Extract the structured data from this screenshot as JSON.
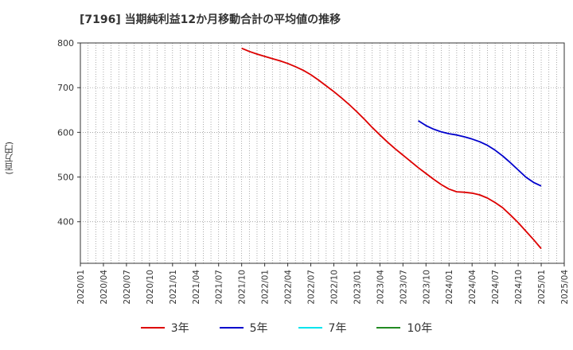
{
  "chart_data": {
    "type": "line",
    "title": "[7196]  当期純利益12か月移動合計の平均値の推移",
    "ylabel": "(百万円)",
    "xlabel": "",
    "ylim": [
      307,
      800
    ],
    "yticks": [
      400,
      500,
      600,
      700,
      800
    ],
    "x_tick_labels": [
      "2020/01",
      "2020/04",
      "2020/07",
      "2020/10",
      "2021/01",
      "2021/04",
      "2021/07",
      "2021/10",
      "2022/01",
      "2022/04",
      "2022/07",
      "2022/10",
      "2023/01",
      "2023/04",
      "2023/07",
      "2023/10",
      "2024/01",
      "2024/04",
      "2024/07",
      "2024/10",
      "2025/01",
      "2025/04"
    ],
    "x_start": "2020/01",
    "x_end": "2025/04",
    "grid": true,
    "legend_position": "bottom",
    "series": [
      {
        "name": "3年",
        "color": "#dd0000",
        "x": [
          "2021/10",
          "2021/11",
          "2021/12",
          "2022/01",
          "2022/02",
          "2022/03",
          "2022/04",
          "2022/05",
          "2022/06",
          "2022/07",
          "2022/08",
          "2022/09",
          "2022/10",
          "2022/11",
          "2022/12",
          "2023/01",
          "2023/02",
          "2023/03",
          "2023/04",
          "2023/05",
          "2023/06",
          "2023/07",
          "2023/08",
          "2023/09",
          "2023/10",
          "2023/11",
          "2023/12",
          "2024/01",
          "2024/02",
          "2024/03",
          "2024/04",
          "2024/05",
          "2024/06",
          "2024/07",
          "2024/08",
          "2024/09",
          "2024/10",
          "2024/11",
          "2024/12",
          "2025/01"
        ],
        "values": [
          788,
          781,
          775,
          770,
          765,
          760,
          754,
          747,
          739,
          729,
          717,
          704,
          691,
          677,
          662,
          646,
          629,
          611,
          594,
          578,
          563,
          549,
          535,
          521,
          508,
          495,
          483,
          473,
          467,
          466,
          464,
          460,
          453,
          443,
          431,
          415,
          398,
          379,
          360,
          340
        ]
      },
      {
        "name": "5年",
        "color": "#0000cc",
        "x": [
          "2023/09",
          "2023/10",
          "2023/11",
          "2023/12",
          "2024/01",
          "2024/02",
          "2024/03",
          "2024/04",
          "2024/05",
          "2024/06",
          "2024/07",
          "2024/08",
          "2024/09",
          "2024/10",
          "2024/11",
          "2024/12",
          "2025/01"
        ],
        "values": [
          626,
          615,
          607,
          601,
          597,
          594,
          590,
          585,
          579,
          571,
          560,
          547,
          532,
          516,
          500,
          488,
          480
        ]
      },
      {
        "name": "7年",
        "color": "#00e5ee",
        "x": [],
        "values": []
      },
      {
        "name": "10年",
        "color": "#228b22",
        "x": [],
        "values": []
      }
    ]
  }
}
